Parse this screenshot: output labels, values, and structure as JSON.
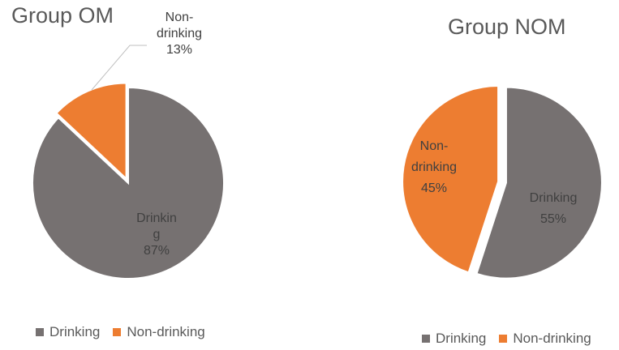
{
  "colors": {
    "drinking": "#767171",
    "non_drinking": "#ed7d31",
    "text": "#595959",
    "leader": "#bfbfbf"
  },
  "chart_data": [
    {
      "type": "pie",
      "title": "Group OM",
      "categories": [
        "Drinking",
        "Non-drinking"
      ],
      "values": [
        87,
        13
      ],
      "slice_labels": [
        [
          "Drinkin",
          "g",
          "87%"
        ],
        [
          "Non-",
          "drinking",
          "13%"
        ]
      ],
      "legend": [
        "Drinking",
        "Non-drinking"
      ],
      "legend_position": "bottom"
    },
    {
      "type": "pie",
      "title": "Group NOM",
      "categories": [
        "Drinking",
        "Non-drinking"
      ],
      "values": [
        55,
        45
      ],
      "slice_labels": [
        [
          "Drinking",
          "55%"
        ],
        [
          "Non-",
          "drinking",
          "45%"
        ]
      ],
      "legend": [
        "Drinking",
        "Non-drinking"
      ],
      "legend_position": "bottom"
    }
  ]
}
